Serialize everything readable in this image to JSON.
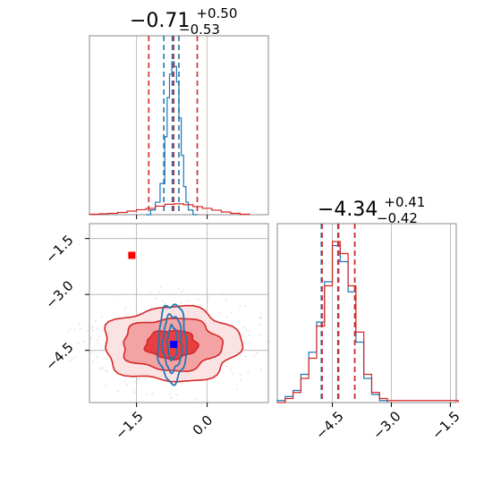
{
  "chart_data": [
    {
      "panel": "marginal-param-1",
      "type": "histogram",
      "title": {
        "base": "−0.71",
        "upper": "+0.50",
        "lower": "−0.53"
      },
      "xlim": [
        -2.5,
        1.3
      ],
      "series": [
        {
          "color": "#1f77b4",
          "bins": [
            -1.3,
            -1.2,
            -1.1,
            -1.0,
            -0.9,
            -0.85,
            -0.8,
            -0.75,
            -0.7,
            -0.65,
            -0.6,
            -0.55,
            -0.5,
            -0.45,
            -0.4,
            -0.3
          ],
          "heights": [
            0,
            3,
            8,
            20,
            50,
            75,
            90,
            98,
            95,
            85,
            62,
            38,
            18,
            8,
            3,
            0
          ],
          "quantiles": [
            -0.92,
            -0.74,
            -0.6
          ]
        },
        {
          "color": "#d62728",
          "bins": [
            -2.5,
            -2.3,
            -2.1,
            -1.9,
            -1.7,
            -1.5,
            -1.3,
            -1.1,
            -0.9,
            -0.7,
            -0.5,
            -0.3,
            -0.1,
            0.1,
            0.3,
            0.5,
            0.7
          ],
          "heights": [
            1,
            2,
            3,
            5,
            8,
            11,
            14,
            19,
            23,
            24,
            22,
            18,
            14,
            10,
            6,
            3,
            1
          ],
          "quantiles": [
            -1.24,
            -0.71,
            -0.21
          ]
        }
      ]
    },
    {
      "panel": "joint",
      "type": "contour",
      "xlim": [
        -2.5,
        1.3
      ],
      "ylim": [
        -5.9,
        -1.1
      ],
      "x_ticks": [
        "−1.5",
        "0.0"
      ],
      "y_ticks": [
        "−1.5",
        "−3.0",
        "−4.5"
      ],
      "red_contours": [
        {
          "level": 3,
          "cx": -0.76,
          "cy": -4.34,
          "rx": 1.45,
          "ry": 1.0
        },
        {
          "level": 2,
          "cx": -0.76,
          "cy": -4.34,
          "rx": 1.05,
          "ry": 0.7
        },
        {
          "level": 1,
          "cx": -0.76,
          "cy": -4.34,
          "rx": 0.55,
          "ry": 0.38
        }
      ],
      "blue_contours": [
        {
          "level": 3,
          "cx": -0.74,
          "cy": -4.3,
          "rx": 0.3,
          "ry": 1.05
        },
        {
          "level": 2,
          "cx": -0.74,
          "cy": -4.3,
          "rx": 0.2,
          "ry": 0.75
        },
        {
          "level": 1,
          "cx": -0.74,
          "cy": -4.3,
          "rx": 0.1,
          "ry": 0.45
        }
      ],
      "markers": [
        {
          "color": "#ff0000",
          "x": -1.6,
          "y": -1.95
        },
        {
          "color": "#0000ff",
          "x": -0.71,
          "y": -4.34
        }
      ]
    },
    {
      "panel": "marginal-param-2",
      "type": "histogram",
      "title": {
        "base": "−4.34",
        "upper": "+0.41",
        "lower": "−0.42"
      },
      "xlim": [
        -5.9,
        -1.35
      ],
      "x_ticks": [
        "−4.5",
        "−3.0",
        "−1.5"
      ],
      "series": [
        {
          "color": "#1f77b4",
          "bins": [
            -5.9,
            -5.7,
            -5.5,
            -5.3,
            -5.1,
            -4.9,
            -4.7,
            -4.5,
            -4.3,
            -4.1,
            -3.9,
            -3.7,
            -3.5,
            -3.3
          ],
          "heights": [
            1,
            3,
            6,
            14,
            25,
            40,
            60,
            78,
            70,
            55,
            30,
            12,
            4,
            1
          ],
          "quantiles": [
            -4.78,
            -4.36,
            -3.93
          ]
        },
        {
          "color": "#d62728",
          "bins": [
            -5.9,
            -5.7,
            -5.5,
            -5.3,
            -5.1,
            -4.9,
            -4.7,
            -4.5,
            -4.3,
            -4.1,
            -3.9,
            -3.7,
            -3.5,
            -3.3,
            -3.1,
            -2.9,
            -2.7,
            -2.5,
            -2.3,
            -2.1,
            -1.9,
            -1.7,
            -1.5
          ],
          "heights": [
            0,
            2,
            5,
            12,
            22,
            38,
            58,
            80,
            74,
            58,
            35,
            14,
            5,
            2,
            1,
            1,
            1,
            1,
            1,
            1,
            1,
            1,
            1
          ],
          "quantiles": [
            -4.76,
            -4.34,
            -3.93
          ]
        }
      ]
    }
  ]
}
